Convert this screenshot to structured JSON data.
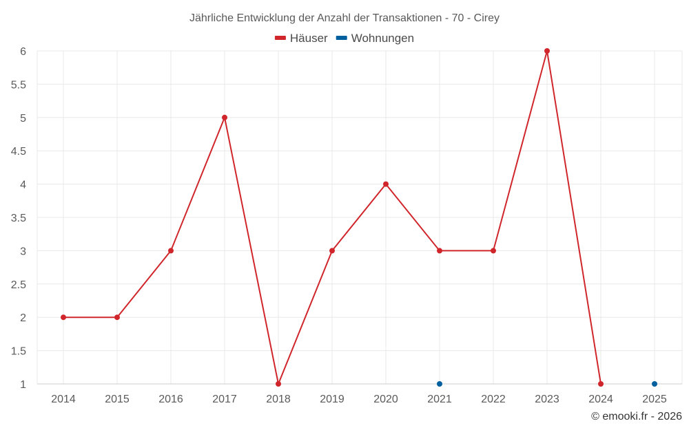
{
  "chart_data": {
    "type": "line",
    "title": "Jährliche Entwicklung der Anzahl der Transaktionen - 70 - Cirey",
    "x": [
      "2014",
      "2015",
      "2016",
      "2017",
      "2018",
      "2019",
      "2020",
      "2021",
      "2022",
      "2023",
      "2024",
      "2025"
    ],
    "ylim": [
      1,
      6
    ],
    "yticks": [
      "1",
      "1.5",
      "2",
      "2.5",
      "3",
      "3.5",
      "4",
      "4.5",
      "5",
      "5.5",
      "6"
    ],
    "grid": true,
    "legend_position": "top-center",
    "series": [
      {
        "name": "Häuser",
        "color": "#d0262b",
        "values": [
          2,
          2,
          3,
          5,
          1,
          3,
          4,
          3,
          3,
          6,
          1,
          null
        ]
      },
      {
        "name": "Wohnungen",
        "color": "#005f9e",
        "values": [
          null,
          null,
          null,
          null,
          null,
          null,
          null,
          1,
          null,
          null,
          null,
          1
        ]
      }
    ]
  },
  "credit": "© emooki.fr - 2026"
}
